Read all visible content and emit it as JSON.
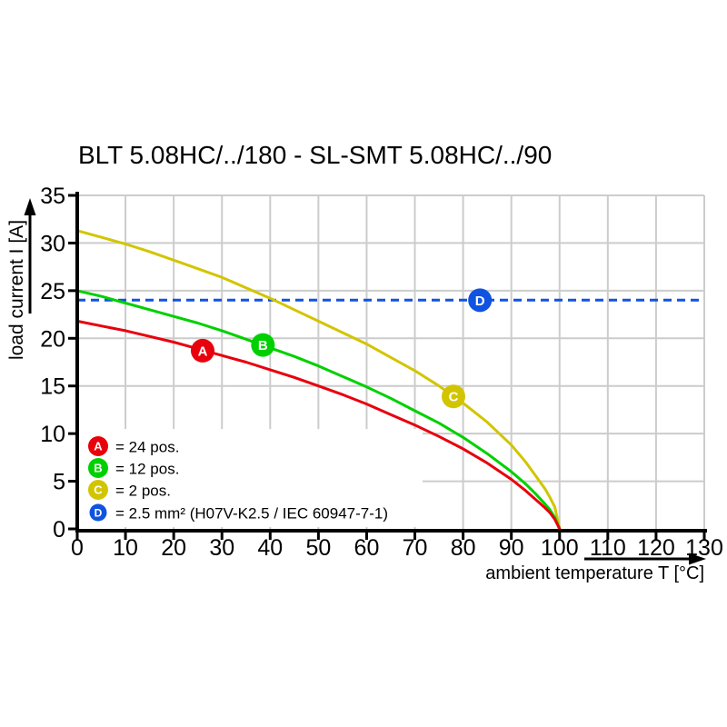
{
  "page": {
    "title": "BLT 5.08HC/../180 - SL-SMT 5.08HC/../90"
  },
  "chart_data": {
    "type": "line",
    "title": "BLT 5.08HC/../180 - SL-SMT 5.08HC/../90",
    "xlabel": "ambient temperature T [°C]",
    "ylabel": "load current I [A]",
    "xlim": [
      0,
      130
    ],
    "ylim": [
      0,
      35
    ],
    "x_ticks": [
      0,
      10,
      20,
      30,
      40,
      50,
      60,
      70,
      80,
      90,
      100,
      110,
      120,
      130
    ],
    "y_ticks": [
      0,
      5,
      10,
      15,
      20,
      25,
      30,
      35
    ],
    "grid": true,
    "legend_position": "bottom-left-inside",
    "colors": {
      "background": "#ffffff",
      "grid": "#cccccc",
      "axis": "#000000",
      "red": "#e8000d",
      "green": "#00d000",
      "yellow": "#d2c500",
      "blue": "#1053e0",
      "marker_letter": "#ffffff"
    },
    "series": [
      {
        "key": "A",
        "label": "24 pos.",
        "color_key": "red",
        "line_style": "solid",
        "marker": {
          "letter": "A",
          "t": 26,
          "i": 18.7
        },
        "points": [
          [
            0,
            21.8
          ],
          [
            5,
            21.3
          ],
          [
            10,
            20.8
          ],
          [
            15,
            20.2
          ],
          [
            20,
            19.6
          ],
          [
            25,
            18.9
          ],
          [
            30,
            18.2
          ],
          [
            35,
            17.5
          ],
          [
            40,
            16.7
          ],
          [
            45,
            15.9
          ],
          [
            50,
            15.0
          ],
          [
            55,
            14.1
          ],
          [
            60,
            13.1
          ],
          [
            65,
            12.0
          ],
          [
            70,
            10.9
          ],
          [
            75,
            9.7
          ],
          [
            80,
            8.4
          ],
          [
            85,
            6.9
          ],
          [
            90,
            5.2
          ],
          [
            93,
            4.0
          ],
          [
            95,
            3.1
          ],
          [
            97,
            2.2
          ],
          [
            98,
            1.7
          ],
          [
            99,
            1.0
          ],
          [
            100,
            0
          ]
        ]
      },
      {
        "key": "B",
        "label": "12 pos.",
        "color_key": "green",
        "line_style": "solid",
        "marker": {
          "letter": "B",
          "t": 38.5,
          "i": 19.3
        },
        "points": [
          [
            0,
            25.0
          ],
          [
            5,
            24.4
          ],
          [
            10,
            23.7
          ],
          [
            15,
            23.0
          ],
          [
            20,
            22.3
          ],
          [
            25,
            21.6
          ],
          [
            30,
            20.8
          ],
          [
            35,
            19.9
          ],
          [
            40,
            19.0
          ],
          [
            45,
            18.1
          ],
          [
            50,
            17.1
          ],
          [
            55,
            16.0
          ],
          [
            60,
            14.9
          ],
          [
            65,
            13.7
          ],
          [
            70,
            12.4
          ],
          [
            75,
            11.1
          ],
          [
            80,
            9.6
          ],
          [
            85,
            7.9
          ],
          [
            90,
            6.0
          ],
          [
            93,
            4.7
          ],
          [
            95,
            3.7
          ],
          [
            97,
            2.6
          ],
          [
            98,
            2.0
          ],
          [
            99,
            1.2
          ],
          [
            100,
            0
          ]
        ]
      },
      {
        "key": "C",
        "label": "2 pos.",
        "color_key": "yellow",
        "line_style": "solid",
        "marker": {
          "letter": "C",
          "t": 78,
          "i": 13.9
        },
        "points": [
          [
            0,
            31.3
          ],
          [
            5,
            30.6
          ],
          [
            10,
            29.9
          ],
          [
            15,
            29.1
          ],
          [
            20,
            28.2
          ],
          [
            25,
            27.3
          ],
          [
            30,
            26.4
          ],
          [
            35,
            25.3
          ],
          [
            40,
            24.2
          ],
          [
            45,
            23.0
          ],
          [
            50,
            21.8
          ],
          [
            55,
            20.6
          ],
          [
            60,
            19.4
          ],
          [
            65,
            18.0
          ],
          [
            70,
            16.6
          ],
          [
            75,
            15.0
          ],
          [
            80,
            13.2
          ],
          [
            85,
            11.2
          ],
          [
            90,
            8.8
          ],
          [
            93,
            7.0
          ],
          [
            95,
            5.6
          ],
          [
            97,
            4.2
          ],
          [
            98,
            3.3
          ],
          [
            99,
            2.3
          ],
          [
            100,
            0
          ]
        ]
      },
      {
        "key": "D",
        "label": "2.5 mm² (H07V-K2.5 / IEC 60947-7-1)",
        "color_key": "blue",
        "line_style": "dashed",
        "marker": {
          "letter": "D",
          "t": 83.5,
          "i": 24
        },
        "points": [
          [
            0,
            24
          ],
          [
            130,
            24
          ]
        ]
      }
    ],
    "legend": {
      "items": [
        {
          "symbol": "A",
          "color_key": "red",
          "label": "= 24 pos."
        },
        {
          "symbol": "B",
          "color_key": "green",
          "label": "= 12 pos."
        },
        {
          "symbol": "C",
          "color_key": "yellow",
          "label": "= 2 pos."
        },
        {
          "symbol": "D",
          "color_key": "blue",
          "label": "= 2.5 mm² (H07V-K2.5 / IEC 60947-7-1)"
        }
      ]
    }
  }
}
